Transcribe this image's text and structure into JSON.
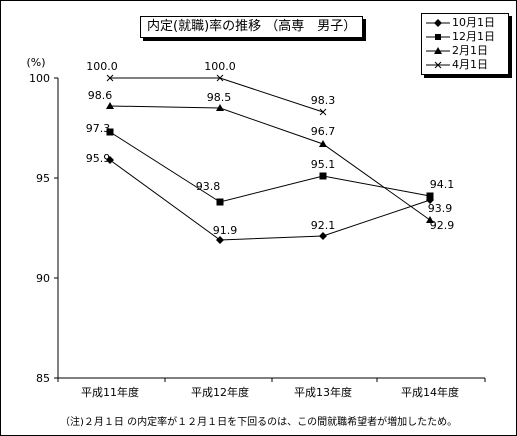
{
  "chart_data": {
    "type": "line",
    "title": "内定(就職)率の推移 （高専　男子）",
    "ylabel": "(%)",
    "categories": [
      "平成11年度",
      "平成12年度",
      "平成13年度",
      "平成14年度"
    ],
    "ylim": [
      85,
      100
    ],
    "yticks": [
      85,
      90,
      95,
      100
    ],
    "grid": false,
    "legend_position": "top-right",
    "series": [
      {
        "name": "10月1日",
        "marker": "diamond",
        "values": [
          95.9,
          91.9,
          92.1,
          93.9
        ],
        "labels": [
          "95.9",
          "91.9",
          "92.1",
          "93.9"
        ]
      },
      {
        "name": "12月1日",
        "marker": "square",
        "values": [
          97.3,
          93.8,
          95.1,
          94.1
        ],
        "labels": [
          "97.3",
          "93.8",
          "95.1",
          "94.1"
        ]
      },
      {
        "name": "2月1日",
        "marker": "triangle",
        "values": [
          98.6,
          98.5,
          96.7,
          92.9
        ],
        "labels": [
          "98.6",
          "98.5",
          "96.7",
          "92.9"
        ]
      },
      {
        "name": "4月1日",
        "marker": "x",
        "values": [
          100.0,
          100.0,
          98.3,
          null
        ],
        "labels": [
          "100.0",
          "100.0",
          "98.3",
          null
        ]
      }
    ],
    "footnote": "（注)２月１日 の内定率が１２月１日を下回るのは、この間就職希望者が増加したため。"
  }
}
